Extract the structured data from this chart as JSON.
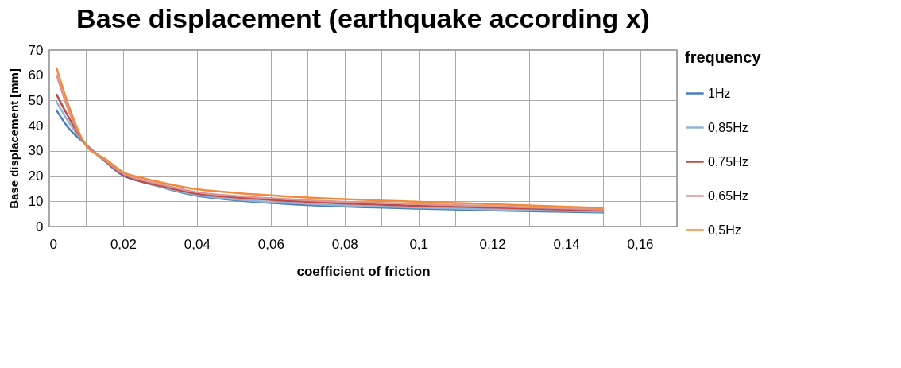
{
  "chart_data": {
    "type": "line",
    "title": "Base displacement (earthquake according x)",
    "xlabel": "coefficient of friction",
    "ylabel": "Base displacement [mm]",
    "legend_title": "frequency",
    "x": [
      0.002,
      0.005,
      0.01,
      0.015,
      0.02,
      0.025,
      0.03,
      0.04,
      0.05,
      0.07,
      0.1,
      0.125,
      0.15
    ],
    "series": [
      {
        "name": "1Hz",
        "color": "#4a7ebb",
        "values": [
          46,
          39.5,
          32.5,
          26,
          20.2,
          17.8,
          15.8,
          12.2,
          10.5,
          8.5,
          7.1,
          6.2,
          5.6
        ]
      },
      {
        "name": "0,85Hz",
        "color": "#95b3d7",
        "values": [
          49.5,
          42,
          32.5,
          26.3,
          21,
          18,
          16,
          12.5,
          10.8,
          9,
          7.5,
          6.6,
          5.9
        ]
      },
      {
        "name": "0,75Hz",
        "color": "#be4b48",
        "values": [
          52.3,
          44,
          32.3,
          26.3,
          20.5,
          17.8,
          16.2,
          13,
          11.6,
          9.8,
          8.2,
          7.3,
          6.3
        ]
      },
      {
        "name": "0,65Hz",
        "color": "#d99694",
        "values": [
          60,
          47,
          32.2,
          26.5,
          21,
          18.5,
          16.8,
          13.6,
          12.2,
          10.4,
          8.9,
          7.8,
          6.8
        ]
      },
      {
        "name": "0,5Hz",
        "color": "#f08a3c",
        "values": [
          62.8,
          49,
          32,
          27,
          21.6,
          19.3,
          17.6,
          14.8,
          13.4,
          11.5,
          9.8,
          8.6,
          7.3
        ]
      }
    ],
    "xlim": [
      0,
      0.17
    ],
    "xticks": [
      {
        "value": 0,
        "label": "0"
      },
      {
        "value": 0.01,
        "label": null
      },
      {
        "value": 0.02,
        "label": "0,02"
      },
      {
        "value": 0.03,
        "label": null
      },
      {
        "value": 0.04,
        "label": "0,04"
      },
      {
        "value": 0.05,
        "label": null
      },
      {
        "value": 0.06,
        "label": "0,06"
      },
      {
        "value": 0.07,
        "label": null
      },
      {
        "value": 0.08,
        "label": "0,08"
      },
      {
        "value": 0.09,
        "label": null
      },
      {
        "value": 0.1,
        "label": "0,1"
      },
      {
        "value": 0.11,
        "label": null
      },
      {
        "value": 0.12,
        "label": "0,12"
      },
      {
        "value": 0.13,
        "label": null
      },
      {
        "value": 0.14,
        "label": "0,14"
      },
      {
        "value": 0.15,
        "label": null
      },
      {
        "value": 0.16,
        "label": "0,16"
      }
    ],
    "ylim": [
      0,
      70
    ],
    "yticks": [
      0,
      10,
      20,
      30,
      40,
      50,
      60,
      70
    ],
    "grid": true,
    "legend": "right",
    "marker": "none",
    "line_style": "solid"
  }
}
